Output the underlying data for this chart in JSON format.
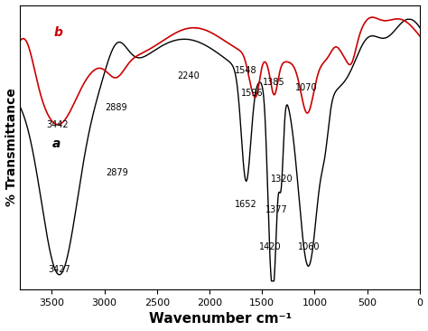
{
  "title": "",
  "xlabel": "Wavenumber cm⁻¹",
  "ylabel": "% Transmittance",
  "background_color": "#ffffff",
  "line_a_color": "#000000",
  "line_b_color": "#cc0000",
  "label_a": "a",
  "label_b": "b",
  "xticks": [
    3500,
    3000,
    2500,
    2000,
    1500,
    1000,
    500,
    0
  ],
  "xlim": [
    3800,
    0
  ],
  "ylim": [
    0,
    100
  ]
}
